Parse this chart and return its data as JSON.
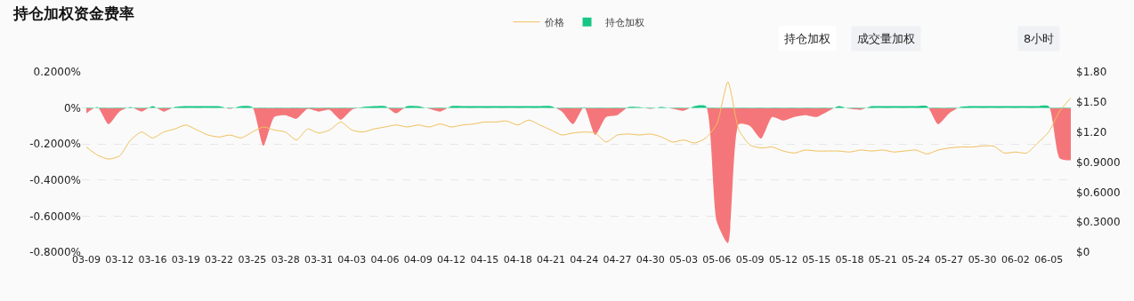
{
  "chart_data": {
    "type": "area",
    "title": "持仓加权资金费率",
    "annotations": [
      "持仓加权",
      "成交量加权",
      "8小时"
    ],
    "categories": [
      "03-09",
      null,
      null,
      "03-12",
      null,
      null,
      "03-16",
      null,
      null,
      "03-19",
      null,
      null,
      "03-22",
      null,
      null,
      "03-25",
      null,
      null,
      "03-28",
      null,
      null,
      "03-31",
      null,
      null,
      "04-03",
      null,
      null,
      "04-06",
      null,
      null,
      "04-09",
      null,
      null,
      "04-12",
      null,
      null,
      "04-15",
      null,
      null,
      "04-18",
      null,
      null,
      "04-21",
      null,
      null,
      "04-24",
      null,
      null,
      "04-27",
      null,
      null,
      "04-30",
      null,
      null,
      "05-03",
      null,
      null,
      "05-06",
      null,
      null,
      "05-09",
      null,
      null,
      "05-12",
      null,
      null,
      "05-15",
      null,
      null,
      "05-18",
      null,
      null,
      "05-21",
      null,
      null,
      "05-24",
      null,
      null,
      "05-27",
      null,
      null,
      "05-30",
      null,
      null,
      "06-02",
      null,
      null,
      "06-05",
      null,
      null
    ],
    "series": [
      {
        "name": "价格",
        "type": "line",
        "axis": "y2",
        "color": "#f0c05a",
        "values": [
          1.05,
          0.97,
          0.93,
          0.96,
          1.12,
          1.2,
          1.14,
          1.2,
          1.23,
          1.27,
          1.22,
          1.17,
          1.15,
          1.17,
          1.14,
          1.2,
          1.25,
          1.22,
          1.2,
          1.12,
          1.23,
          1.19,
          1.22,
          1.3,
          1.22,
          1.2,
          1.23,
          1.25,
          1.27,
          1.25,
          1.27,
          1.25,
          1.28,
          1.25,
          1.27,
          1.28,
          1.3,
          1.3,
          1.31,
          1.27,
          1.32,
          1.27,
          1.22,
          1.17,
          1.19,
          1.2,
          1.19,
          1.1,
          1.17,
          1.18,
          1.17,
          1.18,
          1.15,
          1.1,
          1.12,
          1.09,
          1.14,
          1.28,
          1.7,
          1.22,
          1.07,
          1.04,
          1.05,
          1.01,
          0.99,
          1.02,
          1.01,
          1.01,
          1.01,
          1.0,
          1.02,
          1.01,
          1.02,
          1.0,
          1.01,
          1.02,
          0.98,
          1.02,
          1.04,
          1.05,
          1.05,
          1.06,
          1.06,
          0.99,
          1.0,
          0.99,
          1.09,
          1.2,
          1.41,
          1.54
        ]
      },
      {
        "name": "持仓加权",
        "color": "#16c784",
        "values": [
          -0.03,
          0.005,
          -0.09,
          -0.02,
          0.005,
          -0.02,
          0.01,
          -0.02,
          0.005,
          0.01,
          0.01,
          0.01,
          0.01,
          -0.005,
          0.01,
          0.005,
          -0.21,
          -0.05,
          -0.04,
          -0.06,
          -0.005,
          -0.02,
          -0.01,
          -0.065,
          -0.01,
          0.005,
          0.01,
          0.01,
          -0.03,
          0.01,
          0.01,
          -0.005,
          -0.02,
          0.01,
          0.01,
          0.01,
          0.01,
          0.01,
          0.01,
          0.01,
          0.01,
          0.01,
          0.01,
          -0.02,
          -0.09,
          0.005,
          -0.15,
          -0.05,
          -0.04,
          0.005,
          0.005,
          -0.005,
          0.005,
          -0.005,
          -0.015,
          0.01,
          0.01,
          -0.63,
          -0.75,
          -0.09,
          -0.1,
          -0.17,
          -0.05,
          -0.07,
          -0.05,
          -0.04,
          -0.05,
          -0.02,
          0.01,
          -0.005,
          -0.01,
          0.01,
          0.01,
          0.01,
          0.01,
          0.01,
          0.01,
          -0.09,
          -0.03,
          0.005,
          0.01,
          0.01,
          0.01,
          0.01,
          0.01,
          0.01,
          0.01,
          0.01,
          -0.28,
          -0.29
        ],
        "colors": [
          "#f5767a",
          "#16c784",
          "#f5767a",
          "#f5767a",
          "#16c784",
          "#f5767a",
          "#16c784",
          "#f5767a",
          "#16c784",
          "#16c784",
          "#16c784",
          "#16c784",
          "#16c784",
          "#f5767a",
          "#16c784",
          "#16c784",
          "#f5767a",
          "#f5767a",
          "#f5767a",
          "#f5767a",
          "#f5767a",
          "#f5767a",
          "#f5767a",
          "#f5767a",
          "#f5767a",
          "#16c784",
          "#16c784",
          "#16c784",
          "#f5767a",
          "#16c784",
          "#16c784",
          "#f5767a",
          "#f5767a",
          "#16c784",
          "#16c784",
          "#16c784",
          "#16c784",
          "#16c784",
          "#16c784",
          "#16c784",
          "#16c784",
          "#16c784",
          "#16c784",
          "#f5767a",
          "#f5767a",
          "#16c784",
          "#f5767a",
          "#f5767a",
          "#f5767a",
          "#16c784",
          "#16c784",
          "#f5767a",
          "#16c784",
          "#f5767a",
          "#f5767a",
          "#16c784",
          "#16c784",
          "#f5767a",
          "#f5767a",
          "#f5767a",
          "#f5767a",
          "#f5767a",
          "#f5767a",
          "#f5767a",
          "#f5767a",
          "#f5767a",
          "#f5767a",
          "#f5767a",
          "#16c784",
          "#f5767a",
          "#f5767a",
          "#16c784",
          "#16c784",
          "#16c784",
          "#16c784",
          "#16c784",
          "#16c784",
          "#f5767a",
          "#f5767a",
          "#16c784",
          "#16c784",
          "#16c784",
          "#16c784",
          "#16c784",
          "#16c784",
          "#16c784",
          "#16c784",
          "#16c784",
          "#f5767a",
          "#f5767a"
        ]
      }
    ],
    "ylim": [
      -0.8,
      0.2
    ],
    "yticks": [
      {
        "value": 0.2,
        "label": "0.2000%"
      },
      {
        "value": 0,
        "label": "0%"
      },
      {
        "value": -0.2,
        "label": "-0.2000%"
      },
      {
        "value": -0.4,
        "label": "-0.4000%"
      },
      {
        "value": -0.6,
        "label": "-0.6000%"
      },
      {
        "value": -0.8,
        "label": "-0.8000%"
      }
    ],
    "y2lim": [
      0,
      1.8
    ],
    "y2ticks": [
      {
        "value": 0,
        "label": "$0"
      },
      {
        "value": 0.3,
        "label": "$0.3000"
      },
      {
        "value": 0.6,
        "label": "$0.6000"
      },
      {
        "value": 0.9,
        "label": "$0.9000"
      },
      {
        "value": 1.2,
        "label": "$1.20"
      },
      {
        "value": 1.5,
        "label": "$1.50"
      },
      {
        "value": 1.8,
        "label": "$1.80"
      }
    ],
    "grid": "y",
    "legend": "top",
    "marker": "none",
    "line_style": "solid"
  }
}
